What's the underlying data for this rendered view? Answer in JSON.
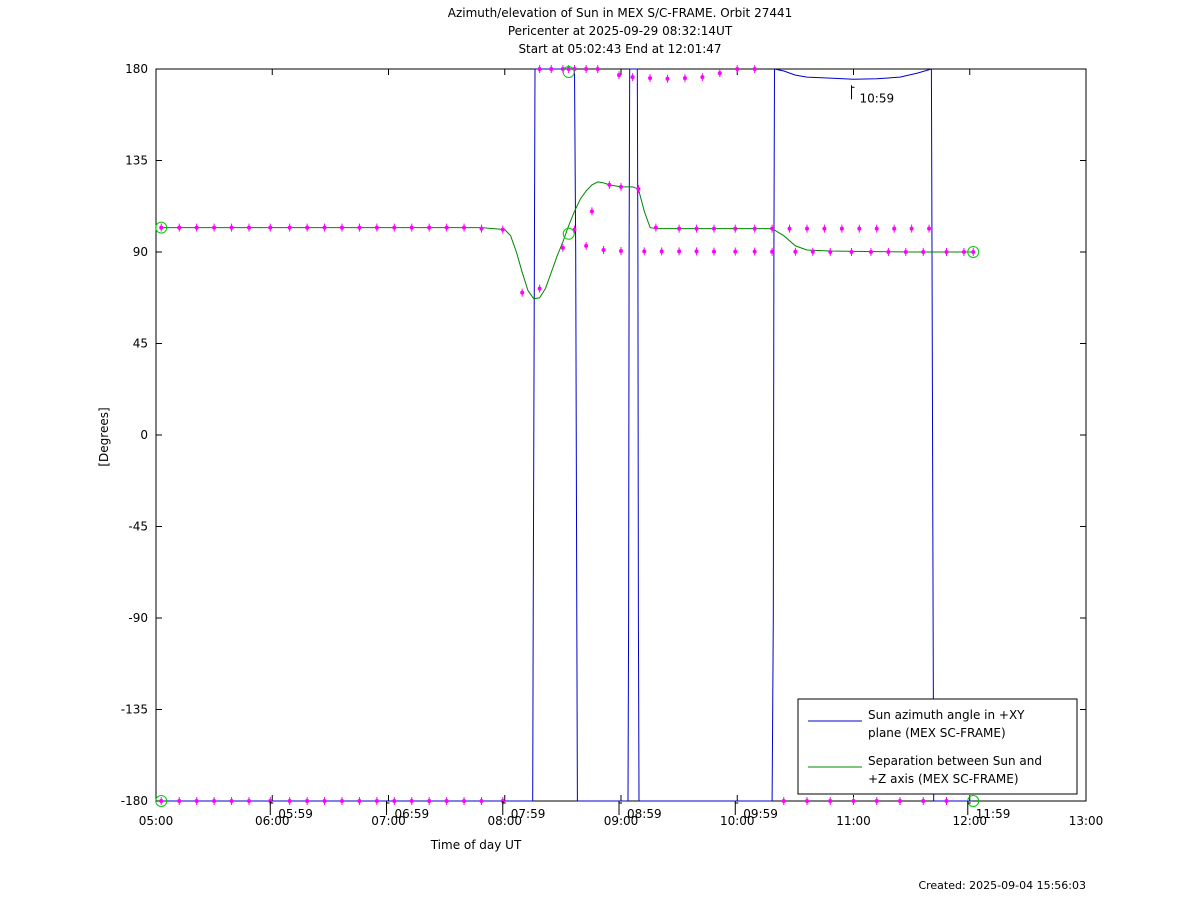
{
  "chart_data": {
    "type": "line",
    "title_lines": [
      "Azimuth/elevation of Sun in MEX S/C-FRAME.  Orbit 27441",
      "Pericenter at 2025-09-29 08:32:14UT",
      "Start at 05:02:43 End at 12:01:47"
    ],
    "xlabel": "Time of day UT",
    "ylabel": "[Degrees]",
    "xlim": [
      5.0,
      13.0
    ],
    "ylim": [
      -180,
      180
    ],
    "xticks": [
      {
        "v": 5,
        "label": "05:00"
      },
      {
        "v": 6,
        "label": "06:00"
      },
      {
        "v": 7,
        "label": "07:00"
      },
      {
        "v": 8,
        "label": "08:00"
      },
      {
        "v": 9,
        "label": "09:00"
      },
      {
        "v": 10,
        "label": "10:00"
      },
      {
        "v": 11,
        "label": "11:00"
      },
      {
        "v": 12,
        "label": "12:00"
      },
      {
        "v": 13,
        "label": "13:00"
      }
    ],
    "yticks": [
      {
        "v": 180,
        "label": "180"
      },
      {
        "v": 135,
        "label": "135"
      },
      {
        "v": 90,
        "label": "90"
      },
      {
        "v": 45,
        "label": "45"
      },
      {
        "v": 0,
        "label": "0"
      },
      {
        "v": -45,
        "label": "-45"
      },
      {
        "v": -90,
        "label": "-90"
      },
      {
        "v": -135,
        "label": "-135"
      },
      {
        "v": -180,
        "label": "-180"
      }
    ],
    "annotations": [
      {
        "x": 5.983,
        "y": -180,
        "label": "05:59"
      },
      {
        "x": 6.983,
        "y": -180,
        "label": "06:59"
      },
      {
        "x": 7.983,
        "y": -180,
        "label": "07:59"
      },
      {
        "x": 8.983,
        "y": -180,
        "label": "08:59"
      },
      {
        "x": 9.983,
        "y": -180,
        "label": "09:59"
      },
      {
        "x": 10.983,
        "y": 172,
        "label": "10:59"
      },
      {
        "x": 11.983,
        "y": -180,
        "label": "11:59"
      }
    ],
    "legend": {
      "position": "bottom-right",
      "entries": [
        {
          "lines": [
            "Sun azimuth angle in +XY",
            "plane (MEX SC-FRAME)"
          ],
          "color": "#0000cc"
        },
        {
          "lines": [
            "Separation between Sun and",
            "+Z axis (MEX SC-FRAME)"
          ],
          "color": "#008800"
        }
      ]
    },
    "series": [
      {
        "name": "Sun azimuth angle in +XY plane (MEX SC-FRAME)",
        "color": "#0000cc",
        "x": [
          5.045,
          5.5,
          6.0,
          6.5,
          7.0,
          7.5,
          8.0,
          8.24,
          8.245,
          8.255,
          8.26,
          8.3,
          8.4,
          8.5,
          8.6,
          8.61,
          8.62,
          8.625,
          8.7,
          8.8,
          8.9,
          9.0,
          9.06,
          9.065,
          9.07,
          9.075,
          9.08,
          9.1,
          9.14,
          9.145,
          9.15,
          9.155,
          9.16,
          9.3,
          9.5,
          9.8,
          10.0,
          10.2,
          10.3,
          10.31,
          10.315,
          10.32,
          10.4,
          10.5,
          10.6,
          10.8,
          11.0,
          11.2,
          11.4,
          11.55,
          11.67,
          11.675,
          11.685,
          11.69,
          11.8,
          12.0,
          12.03
        ],
        "y": [
          -180,
          -180,
          -180,
          -180,
          -180,
          -180,
          -180,
          -180,
          -90,
          90,
          180,
          180,
          180,
          180,
          180,
          90,
          -90,
          -180,
          -180,
          -180,
          -180,
          -180,
          -180,
          -90,
          90,
          180,
          180,
          180,
          180,
          90,
          -90,
          -180,
          -180,
          -180,
          -180,
          -180,
          -180,
          -180,
          -180,
          -90,
          90,
          180,
          179,
          177,
          176,
          175.5,
          175,
          175.2,
          176,
          178,
          180,
          90,
          -90,
          -180,
          -180,
          -180,
          -180
        ]
      },
      {
        "name": "Separation between Sun and +Z axis (MEX SC-FRAME)",
        "color": "#008800",
        "x": [
          5.045,
          5.5,
          6.0,
          6.5,
          7.0,
          7.5,
          7.8,
          8.0,
          8.05,
          8.1,
          8.15,
          8.2,
          8.25,
          8.3,
          8.35,
          8.4,
          8.45,
          8.5,
          8.55,
          8.6,
          8.65,
          8.7,
          8.75,
          8.8,
          8.85,
          8.9,
          8.95,
          9.0,
          9.05,
          9.1,
          9.15,
          9.2,
          9.25,
          9.3,
          9.5,
          9.8,
          10.0,
          10.3,
          10.4,
          10.5,
          10.6,
          10.8,
          11.0,
          11.5,
          12.0,
          12.03
        ],
        "y": [
          102,
          102,
          102,
          102,
          102,
          102,
          102,
          101,
          98,
          90,
          80,
          71,
          67,
          67.5,
          72,
          80,
          88,
          95,
          103,
          110,
          116,
          120,
          123,
          124.5,
          124,
          123,
          122.5,
          122,
          122,
          122,
          121,
          110,
          102,
          101.5,
          101.5,
          101.5,
          101.5,
          101.5,
          98,
          93,
          91,
          90.5,
          90.3,
          90,
          90,
          90
        ]
      },
      {
        "name": "",
        "color": "#ff00ff",
        "x": [
          5.045,
          5.2,
          5.35,
          5.5,
          5.65,
          5.8,
          5.983,
          6.15,
          6.3,
          6.45,
          6.6,
          6.75,
          6.9,
          7.05,
          7.2,
          7.35,
          7.5,
          7.65,
          7.8,
          7.983,
          5.045,
          5.2,
          5.35,
          5.5,
          5.65,
          5.8,
          5.983,
          6.15,
          6.3,
          6.45,
          6.6,
          6.75,
          6.9,
          7.05,
          7.2,
          7.35,
          7.5,
          7.65,
          7.8,
          7.983,
          8.15,
          8.3,
          8.5,
          8.6,
          8.75,
          8.9,
          9.0,
          9.15,
          9.3,
          9.5,
          9.65,
          9.8,
          9.983,
          10.15,
          10.3,
          10.45,
          10.6,
          10.75,
          10.9,
          11.05,
          11.2,
          11.35,
          11.5,
          11.65,
          8.7,
          8.85,
          9.0,
          9.2,
          9.35,
          9.5,
          9.65,
          9.8,
          9.983,
          10.15,
          10.3,
          10.5,
          10.65,
          10.8,
          10.983,
          11.15,
          11.3,
          11.45,
          11.6,
          11.8,
          11.95,
          12.03,
          8.3,
          8.4,
          8.5,
          8.55,
          8.6,
          8.7,
          8.8,
          8.983,
          9.1,
          9.25,
          9.4,
          9.55,
          9.7,
          9.85,
          10.0,
          10.15,
          10.4,
          10.6,
          10.8,
          11.0,
          11.2,
          11.4,
          11.6,
          11.8
        ],
        "y": [
          -180,
          -180,
          -180,
          -180,
          -180,
          -180,
          -180,
          -180,
          -180,
          -180,
          -180,
          -180,
          -180,
          -180,
          -180,
          -180,
          -180,
          -180,
          -180,
          -180,
          102,
          102,
          102,
          102,
          102,
          102,
          102,
          102,
          102,
          102,
          102,
          102,
          102,
          102,
          102,
          102,
          102,
          102,
          101.5,
          101,
          70,
          72,
          92,
          101,
          110,
          123,
          122,
          121,
          102,
          101.5,
          101.5,
          101.5,
          101.5,
          101.5,
          101.5,
          101.5,
          101.5,
          101.5,
          101.5,
          101.5,
          101.5,
          101.5,
          101.5,
          101.5,
          93,
          91,
          90.5,
          90.3,
          90.3,
          90.3,
          90.3,
          90.2,
          90.2,
          90.2,
          90.1,
          90.1,
          90.1,
          90,
          90,
          90,
          90,
          90,
          90,
          90,
          90,
          90,
          180,
          180,
          180,
          180,
          180,
          180,
          180,
          177,
          176,
          175.5,
          175.2,
          175.5,
          176,
          178,
          180,
          180,
          -180,
          -180,
          -180,
          -180,
          -180,
          -180,
          -180,
          -180
        ]
      }
    ],
    "circles": [
      {
        "x": 5.045,
        "y": 102
      },
      {
        "x": 5.045,
        "y": -180
      },
      {
        "x": 8.55,
        "y": 178.5
      },
      {
        "x": 8.55,
        "y": 99
      },
      {
        "x": 12.03,
        "y": 90
      },
      {
        "x": 12.03,
        "y": -180
      }
    ],
    "grid": false
  },
  "footer": {
    "created": "Created: 2025-09-04 15:56:03"
  }
}
